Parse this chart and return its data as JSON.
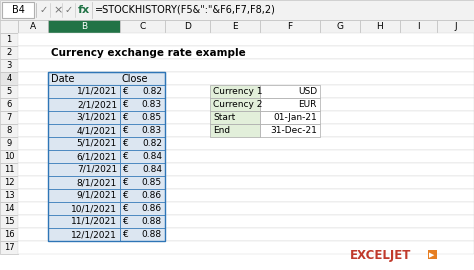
{
  "formula_bar_cell": "B4",
  "formula_bar_text": "=STOCKHISTORY(F5&\":\"&F6,F7,F8,2)",
  "title": "Currency exchange rate example",
  "col_headers": [
    "A",
    "B",
    "C",
    "D",
    "E",
    "F",
    "G",
    "H",
    "I",
    "J"
  ],
  "row_numbers": [
    "1",
    "2",
    "3",
    "4",
    "5",
    "6",
    "7",
    "8",
    "9",
    "10",
    "11",
    "12",
    "13",
    "14",
    "15",
    "16",
    "17"
  ],
  "table_headers": [
    "Date",
    "Close"
  ],
  "dates": [
    "1/1/2021",
    "2/1/2021",
    "3/1/2021",
    "4/1/2021",
    "5/1/2021",
    "6/1/2021",
    "7/1/2021",
    "8/1/2021",
    "9/1/2021",
    "10/1/2021",
    "11/1/2021",
    "12/1/2021"
  ],
  "euro_symbol": "€",
  "values": [
    "0.82",
    "0.83",
    "0.85",
    "0.83",
    "0.82",
    "0.84",
    "0.84",
    "0.85",
    "0.86",
    "0.86",
    "0.88",
    "0.88"
  ],
  "info_labels": [
    "Currency 1",
    "Currency 2",
    "Start",
    "End"
  ],
  "info_values": [
    "USD",
    "EUR",
    "01-Jan-21",
    "31-Dec-21"
  ],
  "bg_color": "#ffffff",
  "formula_bar_bg": "#f2f2f2",
  "col_header_bg": "#f2f2f2",
  "col_header_selected_bg": "#217346",
  "col_header_selected_fg": "#ffffff",
  "row_header_bg": "#f2f2f2",
  "row_header_selected_bg": "#e6e6e6",
  "table_header_bg": "#dce6f1",
  "table_data_bg": "#dce6f1",
  "table_border_color": "#2e75b6",
  "info_label_bg": "#e2efda",
  "info_value_bg": "#ffffff",
  "info_border_color": "#a9a9a9",
  "cell_line_color": "#d4d4d4",
  "text_color": "#000000",
  "formula_bar_text_color": "#000000",
  "exceljet_color": "#c0392b",
  "exceljet_text": "EXCELJET",
  "exceljet_box_color": "#e67e22",
  "formula_icon_color": "#217346",
  "formula_bar_border": "#c0c0c0"
}
